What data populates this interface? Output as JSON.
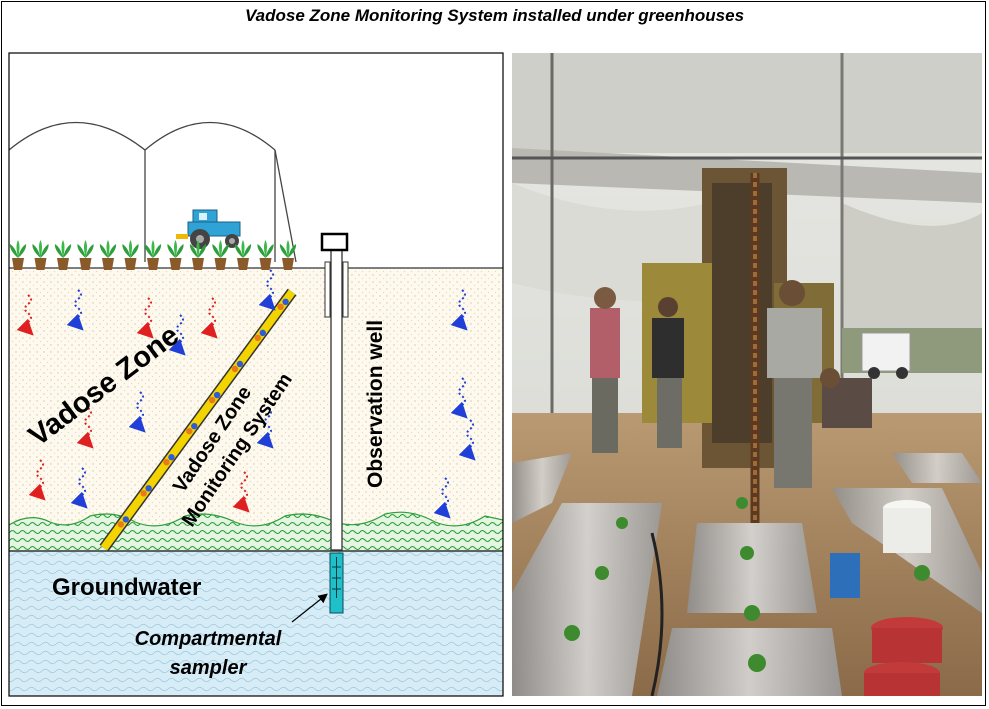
{
  "title": "Vadose Zone Monitoring System installed under greenhouses",
  "diagram": {
    "vadose_zone_label": "Vadose Zone",
    "vms_label_line1": "Vadose Zone",
    "vms_label_line2": "Monitoring System",
    "observation_well_label": "Observation well",
    "groundwater_label": "Groundwater",
    "sampler_label_line1": "Compartmental",
    "sampler_label_line2": "sampler"
  },
  "colors": {
    "soil": "#fdf9ee",
    "groundwater": "#d4ecf6",
    "grass": "#2e9e3c",
    "vms_tube": "#f3d400",
    "sampler": "#20c0c8",
    "arrow_red": "#e02020",
    "arrow_blue": "#1f3fd8",
    "tractor": "#2fa3d6"
  },
  "icons": [
    "tractor-icon",
    "plant-icon",
    "arrow-down-icon"
  ]
}
